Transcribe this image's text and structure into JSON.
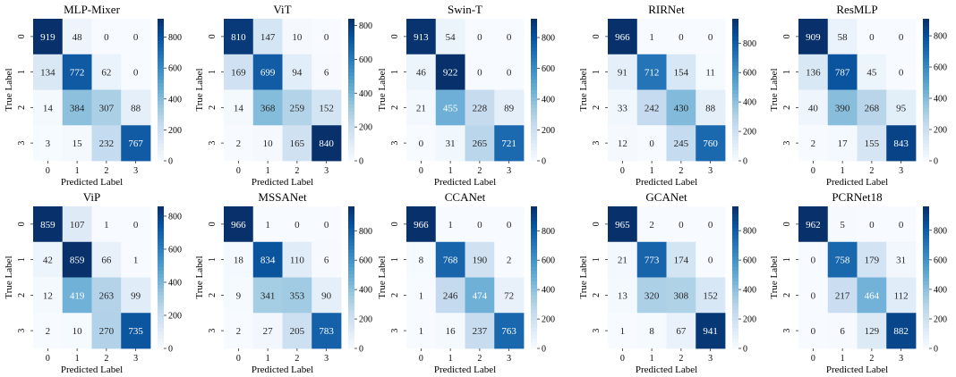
{
  "chart_data": [
    {
      "type": "heatmap",
      "title": "MLP-Mixer",
      "xlabel": "Predicted Label",
      "ylabel": "True Label",
      "x_ticks": [
        "0",
        "1",
        "2",
        "3"
      ],
      "y_ticks": [
        "0",
        "1",
        "2",
        "3"
      ],
      "matrix": [
        [
          919,
          48,
          0,
          0
        ],
        [
          134,
          772,
          62,
          0
        ],
        [
          14,
          384,
          307,
          88
        ],
        [
          3,
          15,
          232,
          767
        ]
      ],
      "colorbar_ticks": [
        0,
        200,
        400,
        600,
        800
      ],
      "colormap": "Blues"
    },
    {
      "type": "heatmap",
      "title": "ViT",
      "xlabel": "Predicted Label",
      "ylabel": "True Label",
      "x_ticks": [
        "0",
        "1",
        "2",
        "3"
      ],
      "y_ticks": [
        "0",
        "1",
        "2",
        "3"
      ],
      "matrix": [
        [
          810,
          147,
          10,
          0
        ],
        [
          169,
          699,
          94,
          6
        ],
        [
          14,
          368,
          259,
          152
        ],
        [
          2,
          10,
          165,
          840
        ]
      ],
      "colorbar_ticks": [
        0,
        200,
        400,
        600,
        800
      ],
      "colormap": "Blues"
    },
    {
      "type": "heatmap",
      "title": "Swin-T",
      "xlabel": "Predicted Label",
      "ylabel": "True Label",
      "x_ticks": [
        "0",
        "1",
        "2",
        "3"
      ],
      "y_ticks": [
        "0",
        "1",
        "2",
        "3"
      ],
      "matrix": [
        [
          913,
          54,
          0,
          0
        ],
        [
          46,
          922,
          0,
          0
        ],
        [
          21,
          455,
          228,
          89
        ],
        [
          0,
          31,
          265,
          721
        ]
      ],
      "colorbar_ticks": [
        0,
        200,
        400,
        600,
        800
      ],
      "colormap": "Blues"
    },
    {
      "type": "heatmap",
      "title": "RIRNet",
      "xlabel": "Predicted Label",
      "ylabel": "True Label",
      "x_ticks": [
        "0",
        "1",
        "2",
        "3"
      ],
      "y_ticks": [
        "0",
        "1",
        "2",
        "3"
      ],
      "matrix": [
        [
          966,
          1,
          0,
          0
        ],
        [
          91,
          712,
          154,
          11
        ],
        [
          33,
          242,
          430,
          88
        ],
        [
          12,
          0,
          245,
          760
        ]
      ],
      "colorbar_ticks": [
        0,
        200,
        400,
        600,
        800
      ],
      "colormap": "Blues"
    },
    {
      "type": "heatmap",
      "title": "ResMLP",
      "xlabel": "Predicted Label",
      "ylabel": "True Label",
      "x_ticks": [
        "0",
        "1",
        "2",
        "3"
      ],
      "y_ticks": [
        "0",
        "1",
        "2",
        "3"
      ],
      "matrix": [
        [
          909,
          58,
          0,
          0
        ],
        [
          136,
          787,
          45,
          0
        ],
        [
          40,
          390,
          268,
          95
        ],
        [
          2,
          17,
          155,
          843
        ]
      ],
      "colorbar_ticks": [
        0,
        200,
        400,
        600,
        800
      ],
      "colormap": "Blues"
    },
    {
      "type": "heatmap",
      "title": "ViP",
      "xlabel": "Predicted Label",
      "ylabel": "True Label",
      "x_ticks": [
        "0",
        "1",
        "2",
        "3"
      ],
      "y_ticks": [
        "0",
        "1",
        "2",
        "3"
      ],
      "matrix": [
        [
          859,
          107,
          1,
          0
        ],
        [
          42,
          859,
          66,
          1
        ],
        [
          12,
          419,
          263,
          99
        ],
        [
          2,
          10,
          270,
          735
        ]
      ],
      "colorbar_ticks": [
        0,
        200,
        400,
        600,
        800
      ],
      "colormap": "Blues"
    },
    {
      "type": "heatmap",
      "title": "MSSANet",
      "xlabel": "Predicted Label",
      "ylabel": "True Label",
      "x_ticks": [
        "0",
        "1",
        "2",
        "3"
      ],
      "y_ticks": [
        "0",
        "1",
        "2",
        "3"
      ],
      "matrix": [
        [
          966,
          1,
          0,
          0
        ],
        [
          18,
          834,
          110,
          6
        ],
        [
          9,
          341,
          353,
          90
        ],
        [
          2,
          27,
          205,
          783
        ]
      ],
      "colorbar_ticks": [
        0,
        200,
        400,
        600,
        800
      ],
      "colormap": "Blues"
    },
    {
      "type": "heatmap",
      "title": "CCANet",
      "xlabel": "Predicted Label",
      "ylabel": "True Label",
      "x_ticks": [
        "0",
        "1",
        "2",
        "3"
      ],
      "y_ticks": [
        "0",
        "1",
        "2",
        "3"
      ],
      "matrix": [
        [
          966,
          1,
          0,
          0
        ],
        [
          8,
          768,
          190,
          2
        ],
        [
          1,
          246,
          474,
          72
        ],
        [
          1,
          16,
          237,
          763
        ]
      ],
      "colorbar_ticks": [
        0,
        200,
        400,
        600,
        800
      ],
      "colormap": "Blues"
    },
    {
      "type": "heatmap",
      "title": "GCANet",
      "xlabel": "Predicted Label",
      "ylabel": "True Label",
      "x_ticks": [
        "0",
        "1",
        "2",
        "3"
      ],
      "y_ticks": [
        "0",
        "1",
        "2",
        "3"
      ],
      "matrix": [
        [
          965,
          2,
          0,
          0
        ],
        [
          21,
          773,
          174,
          0
        ],
        [
          13,
          320,
          308,
          152
        ],
        [
          1,
          8,
          67,
          941
        ]
      ],
      "colorbar_ticks": [
        0,
        200,
        400,
        600,
        800
      ],
      "colormap": "Blues"
    },
    {
      "type": "heatmap",
      "title": "PCRNet18",
      "xlabel": "Predicted Label",
      "ylabel": "True Label",
      "x_ticks": [
        "0",
        "1",
        "2",
        "3"
      ],
      "y_ticks": [
        "0",
        "1",
        "2",
        "3"
      ],
      "matrix": [
        [
          962,
          5,
          0,
          0
        ],
        [
          0,
          758,
          179,
          31
        ],
        [
          0,
          217,
          464,
          112
        ],
        [
          0,
          6,
          129,
          882
        ]
      ],
      "colorbar_ticks": [
        0,
        200,
        400,
        600,
        800
      ],
      "colormap": "Blues"
    }
  ]
}
